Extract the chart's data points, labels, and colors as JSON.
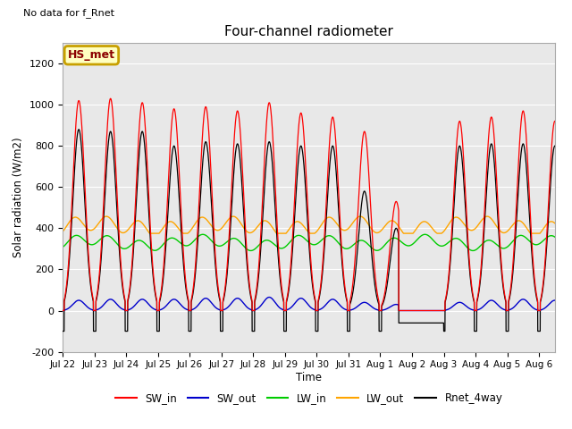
{
  "title": "Four-channel radiometer",
  "top_left_text": "No data for f_Rnet",
  "ylabel": "Solar radiation (W/m2)",
  "xlabel": "Time",
  "ylim": [
    -200,
    1300
  ],
  "yticks": [
    -200,
    0,
    200,
    400,
    600,
    800,
    1000,
    1200
  ],
  "fig_bg_color": "#ffffff",
  "plot_bg_color": "#e8e8e8",
  "annotation_box": "HS_met",
  "date_labels": [
    "Jul 22",
    "Jul 23",
    "Jul 24",
    "Jul 25",
    "Jul 26",
    "Jul 27",
    "Jul 28",
    "Jul 29",
    "Jul 30",
    "Jul 31",
    "Aug 1",
    "Aug 2",
    "Aug 3",
    "Aug 4",
    "Aug 5",
    "Aug 6"
  ],
  "legend_entries": [
    "SW_in",
    "SW_out",
    "LW_in",
    "LW_out",
    "Rnet_4way"
  ],
  "legend_colors": [
    "#ff0000",
    "#0000cc",
    "#00cc00",
    "#ffa500",
    "#000000"
  ],
  "SW_in_peaks": [
    1020,
    1030,
    1010,
    980,
    990,
    970,
    1010,
    960,
    940,
    870,
    530,
    0,
    920,
    940,
    970,
    920
  ],
  "SW_out_peaks": [
    50,
    55,
    55,
    55,
    60,
    60,
    65,
    60,
    55,
    40,
    30,
    0,
    40,
    50,
    55,
    50
  ],
  "Rnet_peaks": [
    880,
    870,
    870,
    800,
    820,
    810,
    820,
    800,
    800,
    580,
    400,
    0,
    800,
    810,
    810,
    800
  ],
  "LW_in_range": [
    290,
    380
  ],
  "LW_out_range": [
    375,
    460
  ],
  "night_Rnet": -100,
  "n_days": 16
}
